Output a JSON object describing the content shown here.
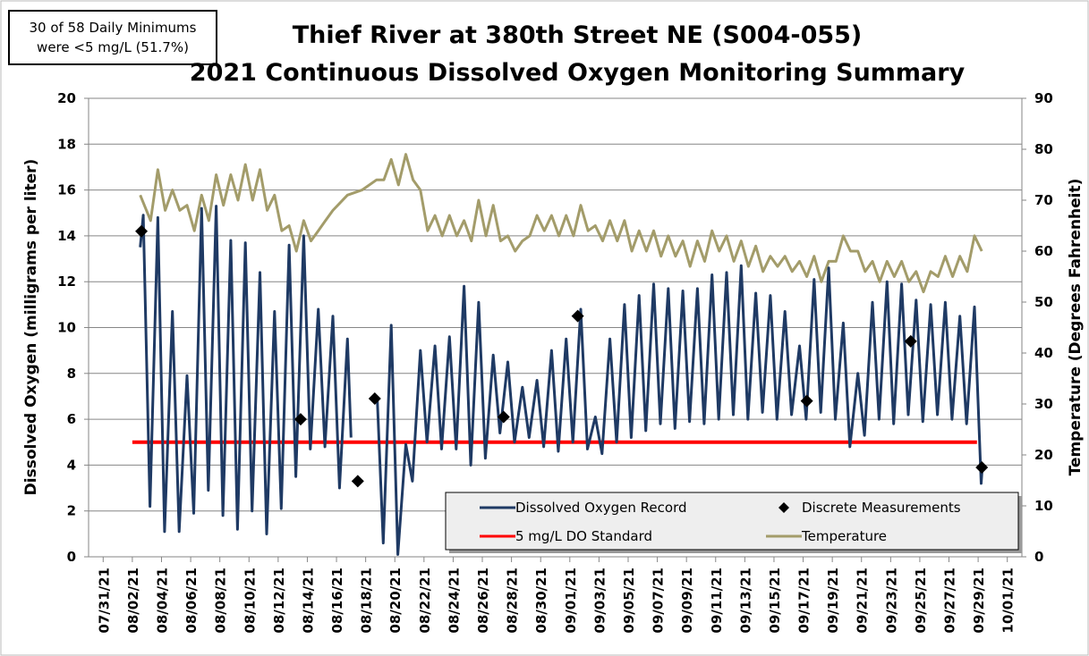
{
  "chart_data": {
    "type": "line",
    "title": [
      "Thief River at 380th Street NE (S004-055)",
      "2021 Continuous Dissolved Oxygen Monitoring Summary"
    ],
    "annotation": [
      "30 of 58 Daily Minimums",
      "were <5 mg/L (51.7%)"
    ],
    "ylabel": "Dissolved Oxygen (milligrams per liter)",
    "y2label": "Temperature (Degrees Fahrenheit)",
    "xlim": [
      "07/30/21",
      "10/02/21"
    ],
    "xticks": [
      "07/31/21",
      "08/02/21",
      "08/04/21",
      "08/06/21",
      "08/08/21",
      "08/10/21",
      "08/12/21",
      "08/14/21",
      "08/16/21",
      "08/18/21",
      "08/20/21",
      "08/22/21",
      "08/24/21",
      "08/26/21",
      "08/28/21",
      "08/30/21",
      "09/01/21",
      "09/03/21",
      "09/05/21",
      "09/07/21",
      "09/09/21",
      "09/11/21",
      "09/13/21",
      "09/15/21",
      "09/17/21",
      "09/19/21",
      "09/21/21",
      "09/23/21",
      "09/25/21",
      "09/27/21",
      "09/29/21",
      "10/01/21"
    ],
    "ylim": [
      0,
      20
    ],
    "yticks": [
      0,
      2,
      4,
      6,
      8,
      10,
      12,
      14,
      16,
      18,
      20
    ],
    "y2lim": [
      0,
      90
    ],
    "y2ticks": [
      0,
      10,
      20,
      30,
      40,
      50,
      60,
      70,
      80,
      90
    ],
    "grid": true,
    "series": [
      {
        "name": "Dissolved Oxygen Record",
        "color": "#1f3a64",
        "x": [
          "08/02/21 13:00",
          "08/02/21 18:00",
          "08/03/21 05:00",
          "08/03/21 18:00",
          "08/04/21 05:00",
          "08/04/21 18:00",
          "08/05/21 05:00",
          "08/05/21 18:00",
          "08/06/21 05:00",
          "08/06/21 18:00",
          "08/07/21 05:00",
          "08/07/21 18:00",
          "08/08/21 05:00",
          "08/08/21 18:00",
          "08/09/21 05:00",
          "08/09/21 18:00",
          "08/10/21 05:00",
          "08/10/21 18:00",
          "08/11/21 05:00",
          "08/11/21 18:00",
          "08/12/21 05:00",
          "08/12/21 18:00",
          "08/13/21 05:00",
          "08/13/21 18:00",
          "08/14/21 05:00",
          "08/14/21 18:00",
          "08/15/21 05:00",
          "08/15/21 18:00",
          "08/16/21 05:00",
          "08/16/21 18:00",
          "08/17/21 00:00",
          "08/18/21 00:00",
          "08/18/21 19:00",
          "08/19/21 05:00",
          "08/19/21 18:00",
          "08/20/21 05:00",
          "08/20/21 18:00",
          "08/21/21 05:00",
          "08/21/21 18:00",
          "08/22/21 05:00",
          "08/22/21 18:00",
          "08/23/21 05:00",
          "08/23/21 18:00",
          "08/24/21 05:00",
          "08/24/21 18:00",
          "08/25/21 05:00",
          "08/25/21 18:00",
          "08/26/21 05:00",
          "08/26/21 18:00",
          "08/27/21 05:00",
          "08/27/21 18:00",
          "08/28/21 05:00",
          "08/28/21 18:00",
          "08/29/21 05:00",
          "08/29/21 18:00",
          "08/30/21 05:00",
          "08/30/21 18:00",
          "08/31/21 05:00",
          "08/31/21 18:00",
          "09/01/21 05:00",
          "09/01/21 18:00",
          "09/02/21 05:00",
          "09/02/21 18:00",
          "09/03/21 05:00",
          "09/03/21 18:00",
          "09/04/21 05:00",
          "09/04/21 18:00",
          "09/05/21 05:00",
          "09/05/21 18:00",
          "09/06/21 05:00",
          "09/06/21 18:00",
          "09/07/21 05:00",
          "09/07/21 18:00",
          "09/08/21 05:00",
          "09/08/21 18:00",
          "09/09/21 05:00",
          "09/09/21 18:00",
          "09/10/21 05:00",
          "09/10/21 18:00",
          "09/11/21 05:00",
          "09/11/21 18:00",
          "09/12/21 05:00",
          "09/12/21 18:00",
          "09/13/21 05:00",
          "09/13/21 18:00",
          "09/14/21 05:00",
          "09/14/21 18:00",
          "09/15/21 05:00",
          "09/15/21 18:00",
          "09/16/21 05:00",
          "09/16/21 18:00",
          "09/17/21 05:00",
          "09/17/21 18:00",
          "09/18/21 05:00",
          "09/18/21 18:00",
          "09/19/21 05:00",
          "09/19/21 18:00",
          "09/20/21 05:00",
          "09/20/21 18:00",
          "09/21/21 05:00",
          "09/21/21 18:00",
          "09/22/21 05:00",
          "09/22/21 18:00",
          "09/23/21 05:00",
          "09/23/21 18:00",
          "09/24/21 05:00",
          "09/24/21 18:00",
          "09/25/21 05:00",
          "09/25/21 18:00",
          "09/26/21 05:00",
          "09/26/21 18:00",
          "09/27/21 05:00",
          "09/27/21 18:00",
          "09/28/21 05:00",
          "09/28/21 18:00",
          "09/29/21 05:00",
          "09/29/21 07:00"
        ],
        "values": [
          13.5,
          14.9,
          2.2,
          14.8,
          1.1,
          10.7,
          1.1,
          7.9,
          1.9,
          15.2,
          2.9,
          15.3,
          1.8,
          13.8,
          1.2,
          13.7,
          2.0,
          12.4,
          1.0,
          10.7,
          2.1,
          13.6,
          3.5,
          14.0,
          4.7,
          10.8,
          4.8,
          10.5,
          3.0,
          9.5,
          5.2,
          null,
          7.0,
          0.6,
          10.1,
          0.1,
          4.9,
          3.3,
          9.0,
          5.0,
          9.2,
          4.7,
          9.6,
          4.7,
          11.8,
          4.0,
          11.1,
          4.3,
          8.8,
          5.4,
          8.5,
          5.0,
          7.4,
          5.2,
          7.7,
          4.8,
          9.0,
          4.6,
          9.5,
          5.0,
          10.8,
          4.7,
          6.1,
          4.5,
          9.5,
          5.0,
          11.0,
          5.2,
          11.4,
          5.5,
          11.9,
          5.8,
          11.7,
          5.6,
          11.6,
          5.9,
          11.7,
          5.8,
          12.3,
          6.0,
          12.4,
          6.2,
          12.7,
          6.0,
          11.5,
          6.3,
          11.4,
          6.0,
          10.7,
          6.2,
          9.2,
          6.0,
          12.1,
          6.3,
          12.6,
          6.0,
          10.2,
          4.8,
          8.0,
          5.3,
          11.1,
          6.0,
          12.0,
          5.8,
          11.9,
          6.2,
          11.2,
          5.9,
          11.0,
          6.2,
          11.1,
          6.0,
          10.5,
          5.8,
          10.9,
          3.2,
          4.0
        ]
      },
      {
        "name": "Discrete Measurements",
        "type": "scatter",
        "color": "#000000",
        "x": [
          "08/02/21 15:00",
          "08/13/21 13:00",
          "08/17/21 11:00",
          "08/18/21 15:00",
          "08/27/21 11:00",
          "09/01/21 13:00",
          "09/17/21 06:00",
          "09/24/21 09:00",
          "09/29/21 06:00"
        ],
        "values": [
          14.2,
          6.0,
          3.3,
          6.9,
          6.1,
          10.5,
          6.8,
          9.4,
          3.9
        ]
      },
      {
        "name": "5 mg/L DO Standard",
        "color": "#ff0000",
        "x": [
          "08/02/21 00:00",
          "09/28/21 22:00"
        ],
        "values": [
          5,
          5
        ]
      },
      {
        "name": "Temperature",
        "color": "#a39c6a",
        "axis": "y2",
        "x": [
          "08/02/21 13:00",
          "08/03/21 06:00",
          "08/03/21 18:00",
          "08/04/21 06:00",
          "08/04/21 18:00",
          "08/05/21 06:00",
          "08/05/21 18:00",
          "08/06/21 06:00",
          "08/06/21 18:00",
          "08/07/21 06:00",
          "08/07/21 18:00",
          "08/08/21 06:00",
          "08/08/21 18:00",
          "08/09/21 06:00",
          "08/09/21 18:00",
          "08/10/21 06:00",
          "08/10/21 18:00",
          "08/11/21 06:00",
          "08/11/21 18:00",
          "08/12/21 06:00",
          "08/12/21 18:00",
          "08/13/21 06:00",
          "08/13/21 18:00",
          "08/14/21 06:00",
          "08/14/21 18:00",
          "08/15/21 06:00",
          "08/15/21 18:00",
          "08/16/21 18:00",
          "08/17/21 18:00",
          "08/18/21 18:00",
          "08/19/21 06:00",
          "08/19/21 18:00",
          "08/20/21 06:00",
          "08/20/21 18:00",
          "08/21/21 06:00",
          "08/21/21 18:00",
          "08/22/21 06:00",
          "08/22/21 18:00",
          "08/23/21 06:00",
          "08/23/21 18:00",
          "08/24/21 06:00",
          "08/24/21 18:00",
          "08/25/21 06:00",
          "08/25/21 18:00",
          "08/26/21 06:00",
          "08/26/21 18:00",
          "08/27/21 06:00",
          "08/27/21 18:00",
          "08/28/21 06:00",
          "08/28/21 18:00",
          "08/29/21 06:00",
          "08/29/21 18:00",
          "08/30/21 06:00",
          "08/30/21 18:00",
          "08/31/21 06:00",
          "08/31/21 18:00",
          "09/01/21 06:00",
          "09/01/21 18:00",
          "09/02/21 06:00",
          "09/02/21 18:00",
          "09/03/21 06:00",
          "09/03/21 18:00",
          "09/04/21 06:00",
          "09/04/21 18:00",
          "09/05/21 06:00",
          "09/05/21 18:00",
          "09/06/21 06:00",
          "09/06/21 18:00",
          "09/07/21 06:00",
          "09/07/21 18:00",
          "09/08/21 06:00",
          "09/08/21 18:00",
          "09/09/21 06:00",
          "09/09/21 18:00",
          "09/10/21 06:00",
          "09/10/21 18:00",
          "09/11/21 06:00",
          "09/11/21 18:00",
          "09/12/21 06:00",
          "09/12/21 18:00",
          "09/13/21 06:00",
          "09/13/21 18:00",
          "09/14/21 06:00",
          "09/14/21 18:00",
          "09/15/21 06:00",
          "09/15/21 18:00",
          "09/16/21 06:00",
          "09/16/21 18:00",
          "09/17/21 06:00",
          "09/17/21 18:00",
          "09/18/21 06:00",
          "09/18/21 18:00",
          "09/19/21 06:00",
          "09/19/21 18:00",
          "09/20/21 06:00",
          "09/20/21 18:00",
          "09/21/21 06:00",
          "09/21/21 18:00",
          "09/22/21 06:00",
          "09/22/21 18:00",
          "09/23/21 06:00",
          "09/23/21 18:00",
          "09/24/21 06:00",
          "09/24/21 18:00",
          "09/25/21 06:00",
          "09/25/21 18:00",
          "09/26/21 06:00",
          "09/26/21 18:00",
          "09/27/21 06:00",
          "09/27/21 18:00",
          "09/28/21 06:00",
          "09/28/21 18:00",
          "09/29/21 06:00"
        ],
        "values": [
          71,
          66,
          76,
          68,
          72,
          68,
          69,
          64,
          71,
          66,
          75,
          69,
          75,
          70,
          77,
          70,
          76,
          68,
          71,
          64,
          65,
          60,
          66,
          62,
          64,
          66,
          68,
          71,
          72,
          74,
          74,
          78,
          73,
          79,
          74,
          72,
          64,
          67,
          63,
          67,
          63,
          66,
          62,
          70,
          63,
          69,
          62,
          63,
          60,
          62,
          63,
          67,
          64,
          67,
          63,
          67,
          63,
          69,
          64,
          65,
          62,
          66,
          62,
          66,
          60,
          64,
          60,
          64,
          59,
          63,
          59,
          62,
          57,
          62,
          58,
          64,
          60,
          63,
          58,
          62,
          57,
          61,
          56,
          59,
          57,
          59,
          56,
          58,
          55,
          59,
          54,
          58,
          58,
          63,
          60,
          60,
          56,
          58,
          54,
          58,
          55,
          58,
          54,
          56,
          52,
          56,
          55,
          59,
          55,
          59,
          56,
          63,
          60
        ]
      }
    ]
  }
}
